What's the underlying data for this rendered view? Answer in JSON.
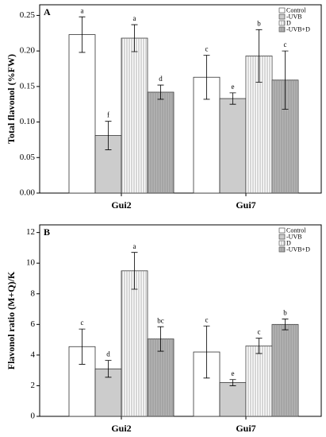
{
  "chart_data": [
    {
      "type": "bar",
      "panel_label": "A",
      "ylabel": "Total flavonol (%FW)",
      "categories": [
        "Gui2",
        "Gui7"
      ],
      "ylim": [
        0,
        0.265
      ],
      "yticks": [
        {
          "value": 0,
          "label": "0.00"
        },
        0.05,
        {
          "value": 0.1,
          "label": "0.10"
        },
        0.15,
        {
          "value": 0.2,
          "label": "0.20"
        },
        0.25
      ],
      "legend": "upper right",
      "series": [
        {
          "name": "Control",
          "color": "#ffffff",
          "hatch": false,
          "values": [
            0.223,
            0.163
          ],
          "errors": [
            0.025,
            0.031
          ],
          "letters": [
            "a",
            "c"
          ]
        },
        {
          "name": "-UVB",
          "color": "#cccccc",
          "hatch": false,
          "values": [
            0.081,
            0.133
          ],
          "errors": [
            0.02,
            0.008
          ],
          "letters": [
            "f",
            "e"
          ]
        },
        {
          "name": "D",
          "color": "#ffffff",
          "hatch": true,
          "values": [
            0.218,
            0.193
          ],
          "errors": [
            0.019,
            0.037
          ],
          "letters": [
            "a",
            "b"
          ]
        },
        {
          "name": "-UVB+D",
          "color": "#b4b4b4",
          "hatch": true,
          "values": [
            0.142,
            0.159
          ],
          "errors": [
            0.01,
            0.041
          ],
          "letters": [
            "d",
            "c"
          ]
        }
      ]
    },
    {
      "type": "bar",
      "panel_label": "B",
      "ylabel": "Flavonol ratio (M+Q)/K",
      "categories": [
        "Gui2",
        "Gui7"
      ],
      "ylim": [
        0,
        12.5
      ],
      "yticks": [
        0,
        2,
        4,
        6,
        8,
        10,
        12
      ],
      "legend": "upper right",
      "series": [
        {
          "name": "Control",
          "color": "#ffffff",
          "hatch": false,
          "values": [
            4.55,
            4.2
          ],
          "errors": [
            1.15,
            1.7
          ],
          "letters": [
            "c",
            "c"
          ]
        },
        {
          "name": "-UVB",
          "color": "#cccccc",
          "hatch": false,
          "values": [
            3.1,
            2.2
          ],
          "errors": [
            0.55,
            0.2
          ],
          "letters": [
            "d",
            "e"
          ]
        },
        {
          "name": "D",
          "color": "#ffffff",
          "hatch": true,
          "values": [
            9.5,
            4.6
          ],
          "errors": [
            1.2,
            0.5
          ],
          "letters": [
            "a",
            "c"
          ]
        },
        {
          "name": "-UVB+D",
          "color": "#b4b4b4",
          "hatch": true,
          "values": [
            5.05,
            6.0
          ],
          "errors": [
            0.8,
            0.35
          ],
          "letters": [
            "bc",
            "b"
          ]
        }
      ]
    }
  ]
}
